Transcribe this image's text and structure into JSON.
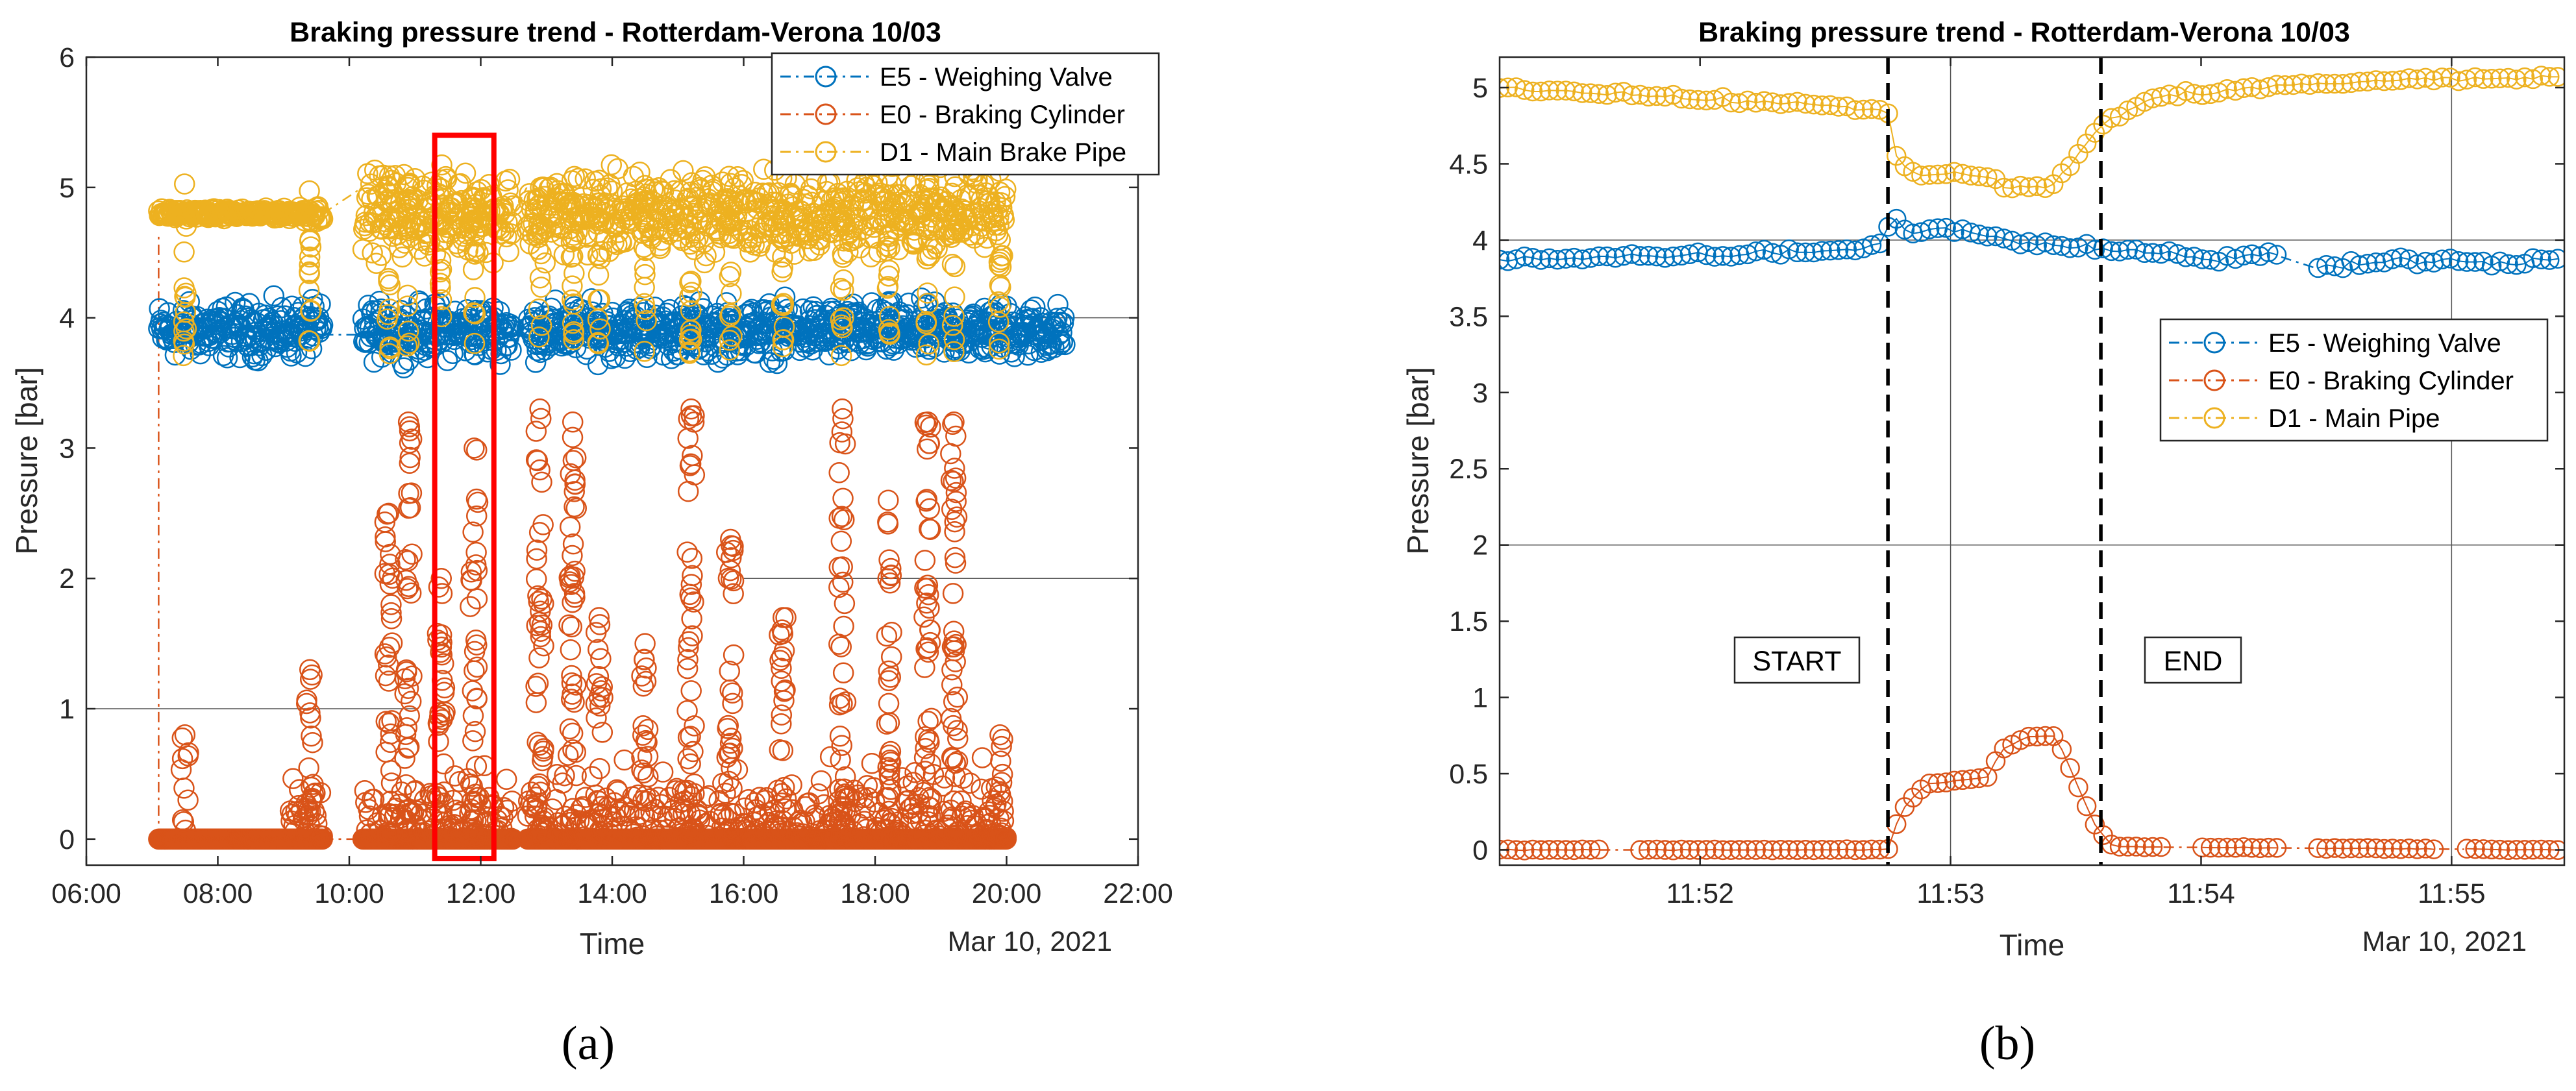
{
  "colors": {
    "e5": "#0072BD",
    "e0": "#D95319",
    "d1": "#EDB120",
    "highlight": "#FF0000",
    "axis": "#262626",
    "grid": "#555555"
  },
  "panel_labels": {
    "a": "(a)",
    "b": "(b)"
  },
  "chart_data": [
    {
      "id": "a",
      "type": "line",
      "title": "Braking pressure trend - Rotterdam-Verona 10/03",
      "xlabel": "Time",
      "ylabel": "Pressure [bar]",
      "date_label": "Mar 10, 2021",
      "xlim": [
        6,
        22
      ],
      "ylim": [
        -0.2,
        6
      ],
      "x_ticks": [
        6,
        8,
        10,
        12,
        14,
        16,
        18,
        20,
        22
      ],
      "x_tick_labels": [
        "06:00",
        "08:00",
        "10:00",
        "12:00",
        "14:00",
        "16:00",
        "18:00",
        "20:00",
        "22:00"
      ],
      "y_ticks": [
        0,
        1,
        2,
        3,
        4,
        5,
        6
      ],
      "y_tick_labels": [
        "0",
        "1",
        "2",
        "3",
        "4",
        "5",
        "6"
      ],
      "grid": [
        {
          "axis": "y",
          "value": 1,
          "from": 6,
          "to": 11
        },
        {
          "axis": "y",
          "value": 2,
          "from": 16,
          "to": 22
        },
        {
          "axis": "y",
          "value": 4,
          "from": 20,
          "to": 22
        }
      ],
      "legend": {
        "position": "top-right",
        "entries": [
          "E5 - Weighing Valve",
          "E0 - Braking Cylinder",
          "D1 - Main Brake Pipe"
        ]
      },
      "highlight_region": {
        "x": [
          11.3,
          12.2
        ],
        "y": [
          -0.15,
          5.4
        ]
      },
      "active_segments": [
        [
          7.1,
          9.6
        ],
        [
          10.2,
          12.5
        ],
        [
          12.7,
          20.0
        ]
      ],
      "gaps": [
        [
          9.6,
          10.2
        ],
        [
          12.5,
          12.7
        ],
        [
          20.0,
          20.9
        ]
      ],
      "series": [
        {
          "name": "E5 - Weighing Valve",
          "baseline": 3.9,
          "spread": 0.3,
          "min": 3.45,
          "max": 4.5,
          "range": [
            7.1,
            20.9
          ]
        },
        {
          "name": "E0 - Braking Cylinder",
          "baseline": 0.0,
          "max": 3.4,
          "range": [
            7.1,
            20.1
          ],
          "peaks": [
            {
              "x": 7.5,
              "max": 0.8
            },
            {
              "x": 9.4,
              "max": 1.3
            },
            {
              "x": 10.6,
              "max": 2.5
            },
            {
              "x": 10.9,
              "max": 3.2
            },
            {
              "x": 11.4,
              "max": 2.0
            },
            {
              "x": 11.9,
              "max": 3.0
            },
            {
              "x": 12.9,
              "max": 3.3
            },
            {
              "x": 13.4,
              "max": 3.2
            },
            {
              "x": 13.8,
              "max": 1.7
            },
            {
              "x": 14.5,
              "max": 1.5
            },
            {
              "x": 15.2,
              "max": 3.3
            },
            {
              "x": 15.8,
              "max": 2.3
            },
            {
              "x": 16.6,
              "max": 1.7
            },
            {
              "x": 17.5,
              "max": 3.3
            },
            {
              "x": 18.2,
              "max": 2.6
            },
            {
              "x": 18.8,
              "max": 3.2
            },
            {
              "x": 19.2,
              "max": 3.2
            },
            {
              "x": 19.9,
              "max": 0.8
            }
          ]
        },
        {
          "name": "D1 - Main Brake Pipe",
          "baseline": 4.8,
          "min": 3.5,
          "max": 5.2,
          "range": [
            7.1,
            20.1
          ]
        }
      ]
    },
    {
      "id": "b",
      "type": "line",
      "title": "Braking pressure trend - Rotterdam-Verona 10/03",
      "xlabel": "Time",
      "ylabel": "Pressure [bar]",
      "date_label": "Mar 10, 2021",
      "xlim_minutes": [
        51.2,
        55.45
      ],
      "ylim": [
        -0.1,
        5.2
      ],
      "x_ticks": [
        52,
        53,
        54,
        55
      ],
      "x_tick_labels": [
        "11:52",
        "11:53",
        "11:54",
        "11:55"
      ],
      "y_ticks": [
        0,
        0.5,
        1,
        1.5,
        2,
        2.5,
        3,
        3.5,
        4,
        4.5,
        5
      ],
      "y_tick_labels": [
        "0",
        "0.5",
        "1",
        "1.5",
        "2",
        "2.5",
        "3",
        "3.5",
        "4",
        "4.5",
        "5"
      ],
      "grid": [
        {
          "axis": "y",
          "value": 2
        },
        {
          "axis": "y",
          "value": 4
        },
        {
          "axis": "x",
          "value": 53
        },
        {
          "axis": "x",
          "value": 55
        }
      ],
      "legend": {
        "position": "right",
        "entries": [
          "E5 - Weighing Valve",
          "E0 - Braking Cylinder",
          "D1 - Main Pipe"
        ]
      },
      "markers": [
        {
          "label": "START",
          "x": 52.75
        },
        {
          "label": "END",
          "x": 53.6
        }
      ],
      "series": [
        {
          "name": "E5 - Weighing Valve",
          "points": [
            [
              51.2,
              3.88
            ],
            [
              52.0,
              3.9
            ],
            [
              52.7,
              3.95
            ],
            [
              52.78,
              4.15
            ],
            [
              52.85,
              4.05
            ],
            [
              53.0,
              4.08
            ],
            [
              53.3,
              3.98
            ],
            [
              53.6,
              3.95
            ],
            [
              54.0,
              3.88
            ],
            [
              54.3,
              3.9
            ],
            [
              54.45,
              3.82
            ],
            [
              54.8,
              3.88
            ],
            [
              55.1,
              3.85
            ],
            [
              55.45,
              3.87
            ]
          ],
          "gaps": [
            [
              54.32,
              54.45
            ]
          ]
        },
        {
          "name": "E0 - Braking Cylinder",
          "points": [
            [
              51.2,
              0.0
            ],
            [
              52.75,
              0.0
            ],
            [
              52.8,
              0.25
            ],
            [
              52.9,
              0.43
            ],
            [
              53.15,
              0.48
            ],
            [
              53.2,
              0.65
            ],
            [
              53.3,
              0.74
            ],
            [
              53.42,
              0.75
            ],
            [
              53.5,
              0.45
            ],
            [
              53.58,
              0.15
            ],
            [
              53.65,
              0.02
            ],
            [
              55.45,
              0.0
            ]
          ],
          "gaps": [
            [
              51.6,
              51.75
            ],
            [
              53.85,
              54.0
            ],
            [
              54.32,
              54.45
            ],
            [
              54.95,
              55.05
            ]
          ]
        },
        {
          "name": "D1 - Main Pipe",
          "points": [
            [
              51.2,
              5.0
            ],
            [
              51.8,
              4.95
            ],
            [
              52.5,
              4.88
            ],
            [
              52.75,
              4.85
            ],
            [
              52.78,
              4.55
            ],
            [
              52.85,
              4.44
            ],
            [
              53.15,
              4.42
            ],
            [
              53.2,
              4.35
            ],
            [
              53.4,
              4.35
            ],
            [
              53.48,
              4.5
            ],
            [
              53.6,
              4.75
            ],
            [
              53.8,
              4.93
            ],
            [
              54.2,
              5.0
            ],
            [
              54.8,
              5.05
            ],
            [
              55.45,
              5.07
            ]
          ],
          "gaps": []
        }
      ]
    }
  ]
}
